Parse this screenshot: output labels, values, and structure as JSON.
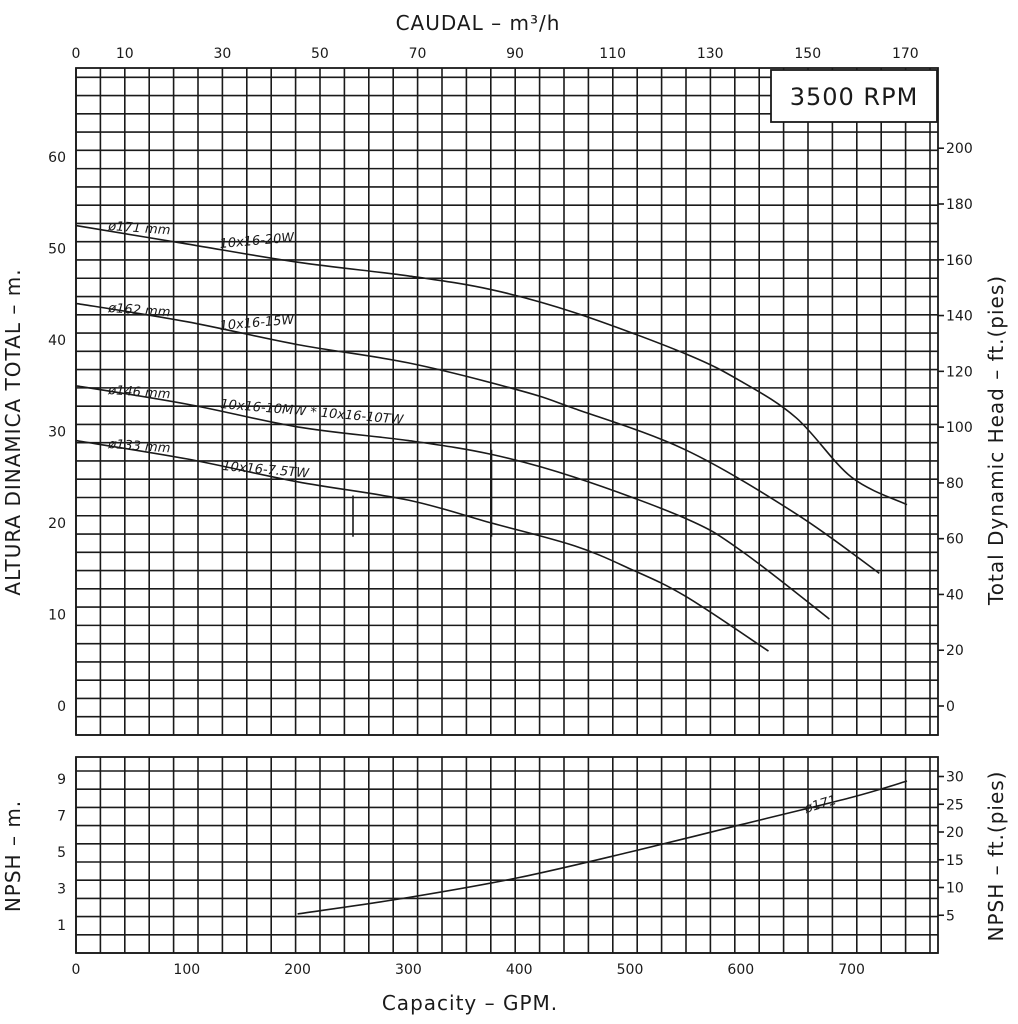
{
  "chart_data": [
    {
      "type": "line",
      "title": "3500 RPM",
      "xlabel_top": "CAUDAL  – m³/h",
      "xlabel": "Capacity – GPM.",
      "ylabel": "ALTURA DINAMICA TOTAL – m.",
      "ylabel_right": "Total Dynamic Head – ft.(pies)",
      "x_range_gpm": [
        0,
        780
      ],
      "y_range_m": [
        -3,
        68
      ],
      "top_ticks": [
        "0",
        "10",
        "30",
        "50",
        "70",
        "90",
        "110",
        "130",
        "150",
        "170"
      ],
      "top_tick_values": [
        0,
        10,
        30,
        50,
        70,
        90,
        110,
        130,
        150,
        170
      ],
      "left_ticks": [
        "0",
        "10",
        "20",
        "30",
        "40",
        "50",
        "60"
      ],
      "left_tick_values": [
        0,
        10,
        20,
        30,
        40,
        50,
        60
      ],
      "right_ticks": [
        "0",
        "20",
        "40",
        "60",
        "80",
        "100",
        "120",
        "140",
        "160",
        "180",
        "200"
      ],
      "right_tick_values": [
        0,
        20,
        40,
        60,
        80,
        100,
        120,
        140,
        160,
        180,
        200
      ],
      "series": [
        {
          "name": "ø171 mm",
          "model": "10x16-20W",
          "x": [
            0,
            100,
            200,
            300,
            375,
            450,
            550,
            600,
            650,
            700,
            750
          ],
          "y": [
            52.5,
            50.5,
            48.5,
            47,
            45.5,
            43,
            38.5,
            35.5,
            31.5,
            25,
            22
          ]
        },
        {
          "name": "ø162 mm",
          "model": "10x16-15W",
          "x": [
            0,
            100,
            200,
            300,
            400,
            450,
            550,
            650,
            725
          ],
          "y": [
            44,
            42,
            39.5,
            37.5,
            34.5,
            32.5,
            28,
            21,
            14.5
          ]
        },
        {
          "name": "ø146 mm",
          "model": "10x16-10MW * 10x16-10TW",
          "x": [
            0,
            100,
            200,
            300,
            375,
            450,
            550,
            600,
            680
          ],
          "y": [
            35,
            33,
            30.5,
            29,
            27.5,
            25,
            20.5,
            17,
            9.5
          ]
        },
        {
          "name": "ø133 mm",
          "model": "10x16-7.5TW",
          "x": [
            0,
            100,
            200,
            300,
            375,
            450,
            500,
            550,
            625
          ],
          "y": [
            29,
            27,
            24.5,
            22.5,
            20,
            17.5,
            15,
            12,
            6
          ]
        }
      ],
      "markers": [
        {
          "x": 250,
          "y_from": 18.5,
          "y_to": 23
        },
        {
          "x": 375,
          "y_from": 18.5,
          "y_to": 28
        }
      ]
    },
    {
      "type": "line",
      "xlabel": "Capacity – GPM.",
      "ylabel": "NPSH – m.",
      "ylabel_right": "NPSH – ft.(pies)",
      "x_range_gpm": [
        0,
        780
      ],
      "y_range_m": [
        -0.5,
        10.5
      ],
      "x_ticks": [
        "0",
        "100",
        "200",
        "300",
        "400",
        "500",
        "600",
        "700"
      ],
      "x_tick_values": [
        0,
        100,
        200,
        300,
        400,
        500,
        600,
        700
      ],
      "left_ticks": [
        "1",
        "3",
        "5",
        "7",
        "9"
      ],
      "left_tick_values": [
        1,
        3,
        5,
        7,
        9
      ],
      "right_ticks": [
        "5",
        "10",
        "15",
        "20",
        "25",
        "30"
      ],
      "right_tick_values": [
        5,
        10,
        15,
        20,
        25,
        30
      ],
      "series": [
        {
          "name": "ø171",
          "x": [
            200,
            300,
            400,
            500,
            600,
            700,
            750
          ],
          "y": [
            1.6,
            2.5,
            3.6,
            5,
            6.5,
            8,
            8.9
          ]
        }
      ]
    }
  ]
}
